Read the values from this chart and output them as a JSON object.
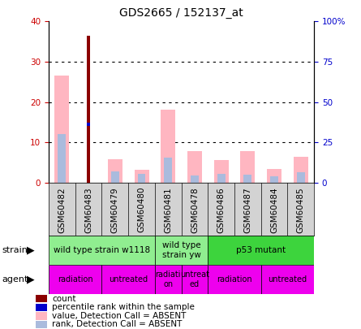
{
  "title": "GDS2665 / 152137_at",
  "samples": [
    "GSM60482",
    "GSM60483",
    "GSM60479",
    "GSM60480",
    "GSM60481",
    "GSM60478",
    "GSM60486",
    "GSM60487",
    "GSM60484",
    "GSM60485"
  ],
  "count_values": [
    0,
    36.5,
    0,
    0,
    0,
    0,
    0,
    0,
    0,
    0
  ],
  "percentile_values": [
    0,
    14.5,
    0,
    0,
    0,
    0,
    0,
    0,
    0,
    0
  ],
  "value_absent": [
    26.5,
    0,
    5.8,
    3.2,
    18.0,
    7.8,
    5.5,
    7.9,
    3.4,
    6.5
  ],
  "rank_absent": [
    12.0,
    0,
    2.8,
    2.2,
    6.2,
    1.8,
    2.2,
    2.0,
    1.5,
    2.5
  ],
  "ylim_left": [
    0,
    40
  ],
  "ylim_right": [
    0,
    100
  ],
  "yticks_left": [
    0,
    10,
    20,
    30,
    40
  ],
  "yticks_right": [
    0,
    25,
    50,
    75,
    100
  ],
  "ytick_labels_left": [
    "0",
    "10",
    "20",
    "30",
    "40"
  ],
  "ytick_labels_right": [
    "0",
    "25",
    "50",
    "75",
    "100%"
  ],
  "strain_groups": [
    {
      "label": "wild type strain w1118",
      "start": 0,
      "end": 4,
      "color": "#90EE90"
    },
    {
      "label": "wild type\nstrain yw",
      "start": 4,
      "end": 6,
      "color": "#90EE90"
    },
    {
      "label": "p53 mutant",
      "start": 6,
      "end": 10,
      "color": "#3DD43D"
    }
  ],
  "agent_groups": [
    {
      "label": "radiation",
      "start": 0,
      "end": 2
    },
    {
      "label": "untreated",
      "start": 2,
      "end": 4
    },
    {
      "label": "radiati\non",
      "start": 4,
      "end": 5
    },
    {
      "label": "untreat\ned",
      "start": 5,
      "end": 6
    },
    {
      "label": "radiation",
      "start": 6,
      "end": 8
    },
    {
      "label": "untreated",
      "start": 8,
      "end": 10
    }
  ],
  "colors": {
    "count": "#8B0000",
    "percentile": "#0000CC",
    "value_absent": "#FFB6C1",
    "rank_absent": "#AABBDD",
    "agent": "#EE00EE",
    "tick_left": "#CC0000",
    "tick_right": "#0000CC",
    "sample_bg": "#D3D3D3"
  },
  "legend_items": [
    {
      "label": "count",
      "color": "#8B0000"
    },
    {
      "label": "percentile rank within the sample",
      "color": "#0000CC"
    },
    {
      "label": "value, Detection Call = ABSENT",
      "color": "#FFB6C1"
    },
    {
      "label": "rank, Detection Call = ABSENT",
      "color": "#AABBDD"
    }
  ]
}
